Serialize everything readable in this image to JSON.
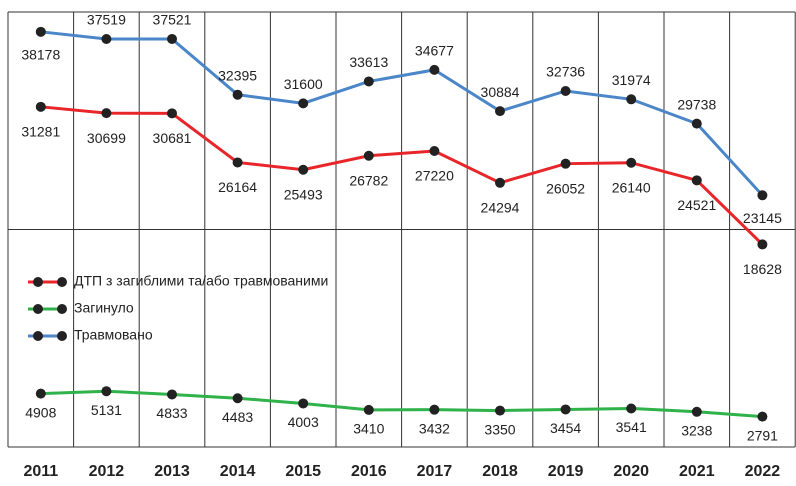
{
  "chart_data": {
    "type": "line",
    "categories": [
      "2011",
      "2012",
      "2013",
      "2014",
      "2015",
      "2016",
      "2017",
      "2018",
      "2019",
      "2020",
      "2021",
      "2022"
    ],
    "series": [
      {
        "name": "ДТП з загиблими та/або травмованими",
        "color": "#e8262a",
        "values": [
          31281,
          30699,
          30681,
          26164,
          25493,
          26782,
          27220,
          24294,
          26052,
          26140,
          24521,
          18628
        ]
      },
      {
        "name": "Загинуло",
        "color": "#2fb24a",
        "values": [
          4908,
          5131,
          4833,
          4483,
          4003,
          3410,
          3432,
          3350,
          3454,
          3541,
          3238,
          2791
        ]
      },
      {
        "name": "Травмовано",
        "color": "#4a86c8",
        "values": [
          38178,
          37519,
          37521,
          32395,
          31600,
          33613,
          34677,
          30884,
          32736,
          31974,
          29738,
          23145
        ]
      }
    ],
    "ylim": [
      0,
      40000
    ],
    "yticks": [
      0,
      20000,
      40000
    ],
    "grid": true,
    "legend": "left"
  }
}
